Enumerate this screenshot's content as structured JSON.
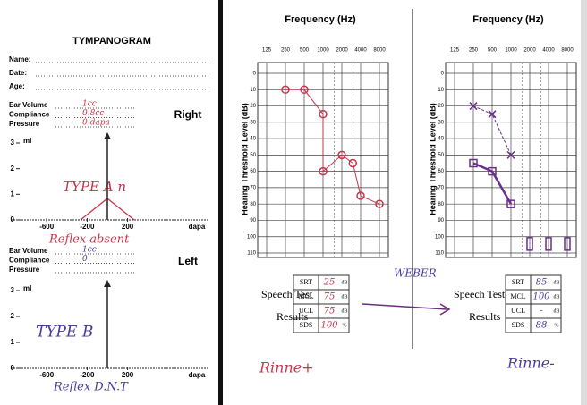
{
  "tympanogram": {
    "title": "TYMPANOGRAM",
    "fields": [
      "Name:",
      "Date:",
      "Age:"
    ],
    "right": {
      "side": "Right",
      "labels": [
        "Ear Volume",
        "Compliance",
        "Pressure"
      ],
      "handwritten": [
        "1cc",
        "0.8cc",
        "0 dapa"
      ],
      "type": "TYPE A n",
      "reflex": "Reflex absent"
    },
    "left": {
      "side": "Left",
      "labels": [
        "Ear Volume",
        "Compliance",
        "Pressure"
      ],
      "handwritten": [
        "1cc",
        "0"
      ],
      "type": "TYPE B",
      "reflex": "Reflex D.N.T"
    },
    "yticks": [
      0,
      1,
      2,
      3
    ],
    "y_unit": "ml",
    "xticks": [
      -600,
      -200,
      200
    ],
    "x_unit": "dapa"
  },
  "audiogram": {
    "x_title": "Frequency (Hz)",
    "y_title": "Hearing Threshold Level (dB)",
    "frequencies": [
      125,
      250,
      500,
      1000,
      2000,
      4000,
      8000
    ],
    "yticks": [
      0,
      10,
      20,
      30,
      40,
      50,
      60,
      70,
      80,
      90,
      100,
      110
    ],
    "right_ear": {
      "points": [
        {
          "f": 250,
          "db": 10
        },
        {
          "f": 500,
          "db": 10
        },
        {
          "f": 1000,
          "db": 25
        },
        {
          "f": 1000,
          "db": 60
        },
        {
          "f": 2000,
          "db": 50
        },
        {
          "f": 3000,
          "db": 55
        },
        {
          "f": 4000,
          "db": 75
        },
        {
          "f": 8000,
          "db": 80
        }
      ]
    },
    "left_ear": {
      "x_points": [
        {
          "f": 250,
          "db": 20
        },
        {
          "f": 500,
          "db": 25
        },
        {
          "f": 1000,
          "db": 50
        }
      ],
      "square_points": [
        {
          "f": 250,
          "db": 55
        },
        {
          "f": 500,
          "db": 60
        },
        {
          "f": 1000,
          "db": 80
        }
      ],
      "no_response": [
        {
          "f": 2000,
          "db": 105
        },
        {
          "f": 4000,
          "db": 105
        },
        {
          "f": 8000,
          "db": 105
        }
      ]
    }
  },
  "speech_test": {
    "title": "Speech Test",
    "subtitle": "Results",
    "rows": [
      "SRT",
      "MCL",
      "UCL",
      "SDS"
    ],
    "units": [
      "dB",
      "dB",
      "dB",
      "%"
    ],
    "right_values": [
      "25",
      "75",
      "75",
      "100"
    ],
    "left_values": [
      "85",
      "100",
      "-",
      "88"
    ]
  },
  "weber": "WEBER",
  "rinne_right": "Rinne+",
  "rinne_left": "Rinne-"
}
